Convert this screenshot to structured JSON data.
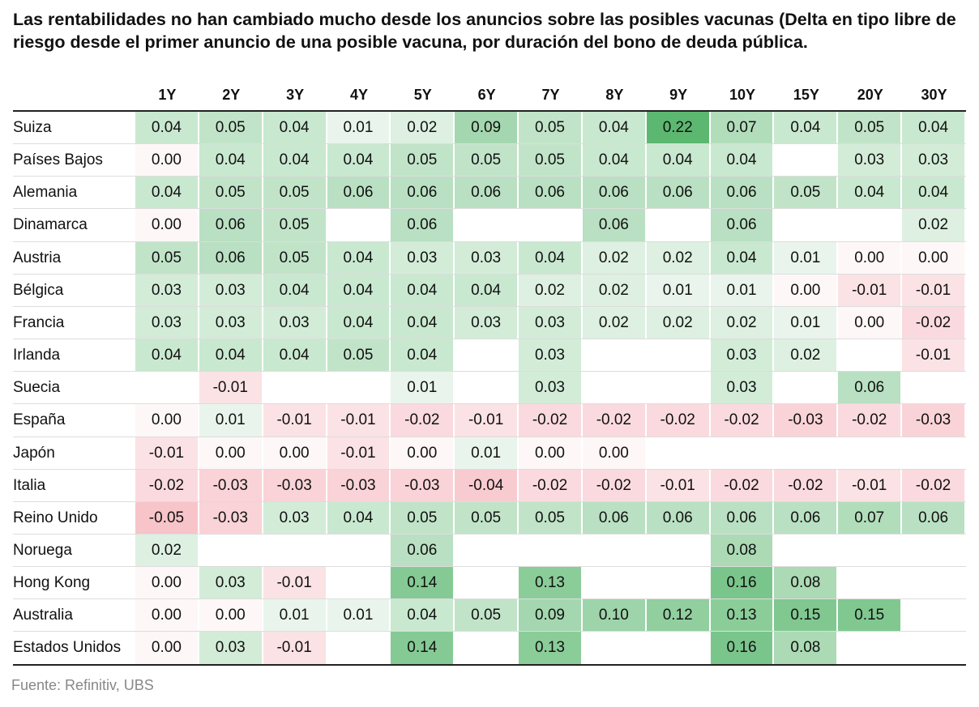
{
  "header": {
    "title": "Las rentabilidades no han cambiado mucho desde los anuncios sobre las posibles vacunas (Delta en tipo libre de riesgo desde el primer anuncio de una posible vacuna, por duración del bono de deuda pública."
  },
  "table": {
    "columns": [
      "1Y",
      "2Y",
      "3Y",
      "4Y",
      "5Y",
      "6Y",
      "7Y",
      "8Y",
      "9Y",
      "10Y",
      "15Y",
      "20Y",
      "30Y"
    ],
    "row_labels": [
      "Suiza",
      "Países Bajos",
      "Alemania",
      "Dinamarca",
      "Austria",
      "Bélgica",
      "Francia",
      "Irlanda",
      "Suecia",
      "España",
      "Japón",
      "Italia",
      "Reino Unido",
      "Noruega",
      "Hong Kong",
      "Australia",
      "Estados Unidos"
    ],
    "rows": [
      [
        "0.04",
        "0.05",
        "0.04",
        "0.01",
        "0.02",
        "0.09",
        "0.05",
        "0.04",
        "0.22",
        "0.07",
        "0.04",
        "0.05",
        "0.04"
      ],
      [
        "0.00",
        "0.04",
        "0.04",
        "0.04",
        "0.05",
        "0.05",
        "0.05",
        "0.04",
        "0.04",
        "0.04",
        null,
        "0.03",
        "0.03"
      ],
      [
        "0.04",
        "0.05",
        "0.05",
        "0.06",
        "0.06",
        "0.06",
        "0.06",
        "0.06",
        "0.06",
        "0.06",
        "0.05",
        "0.04",
        "0.04"
      ],
      [
        "0.00",
        "0.06",
        "0.05",
        null,
        "0.06",
        null,
        null,
        "0.06",
        null,
        "0.06",
        null,
        null,
        "0.02"
      ],
      [
        "0.05",
        "0.06",
        "0.05",
        "0.04",
        "0.03",
        "0.03",
        "0.04",
        "0.02",
        "0.02",
        "0.04",
        "0.01",
        "0.00",
        "0.00"
      ],
      [
        "0.03",
        "0.03",
        "0.04",
        "0.04",
        "0.04",
        "0.04",
        "0.02",
        "0.02",
        "0.01",
        "0.01",
        "0.00",
        "-0.01",
        "-0.01"
      ],
      [
        "0.03",
        "0.03",
        "0.03",
        "0.04",
        "0.04",
        "0.03",
        "0.03",
        "0.02",
        "0.02",
        "0.02",
        "0.01",
        "0.00",
        "-0.02"
      ],
      [
        "0.04",
        "0.04",
        "0.04",
        "0.05",
        "0.04",
        null,
        "0.03",
        null,
        null,
        "0.03",
        "0.02",
        null,
        "-0.01"
      ],
      [
        null,
        "-0.01",
        null,
        null,
        "0.01",
        null,
        "0.03",
        null,
        null,
        "0.03",
        null,
        "0.06",
        null
      ],
      [
        "0.00",
        "0.01",
        "-0.01",
        "-0.01",
        "-0.02",
        "-0.01",
        "-0.02",
        "-0.02",
        "-0.02",
        "-0.02",
        "-0.03",
        "-0.02",
        "-0.03"
      ],
      [
        "-0.01",
        "0.00",
        "0.00",
        "-0.01",
        "0.00",
        "0.01",
        "0.00",
        "0.00",
        null,
        null,
        null,
        null,
        null
      ],
      [
        "-0.02",
        "-0.03",
        "-0.03",
        "-0.03",
        "-0.03",
        "-0.04",
        "-0.02",
        "-0.02",
        "-0.01",
        "-0.02",
        "-0.02",
        "-0.01",
        "-0.02"
      ],
      [
        "-0.05",
        "-0.03",
        "0.03",
        "0.04",
        "0.05",
        "0.05",
        "0.05",
        "0.06",
        "0.06",
        "0.06",
        "0.06",
        "0.07",
        "0.06"
      ],
      [
        "0.02",
        null,
        null,
        null,
        "0.06",
        null,
        null,
        null,
        null,
        "0.08",
        null,
        null,
        null
      ],
      [
        "0.00",
        "0.03",
        "-0.01",
        null,
        "0.14",
        null,
        "0.13",
        null,
        null,
        "0.16",
        "0.08",
        null,
        null
      ],
      [
        "0.00",
        "0.00",
        "0.01",
        "0.01",
        "0.04",
        "0.05",
        "0.09",
        "0.10",
        "0.12",
        "0.13",
        "0.15",
        "0.15",
        null
      ],
      [
        "0.00",
        "0.03",
        "-0.01",
        null,
        "0.14",
        null,
        "0.13",
        null,
        null,
        "0.16",
        "0.08",
        null,
        null
      ]
    ]
  },
  "footer": {
    "source": "Fuente: Refinitiv, UBS"
  }
}
